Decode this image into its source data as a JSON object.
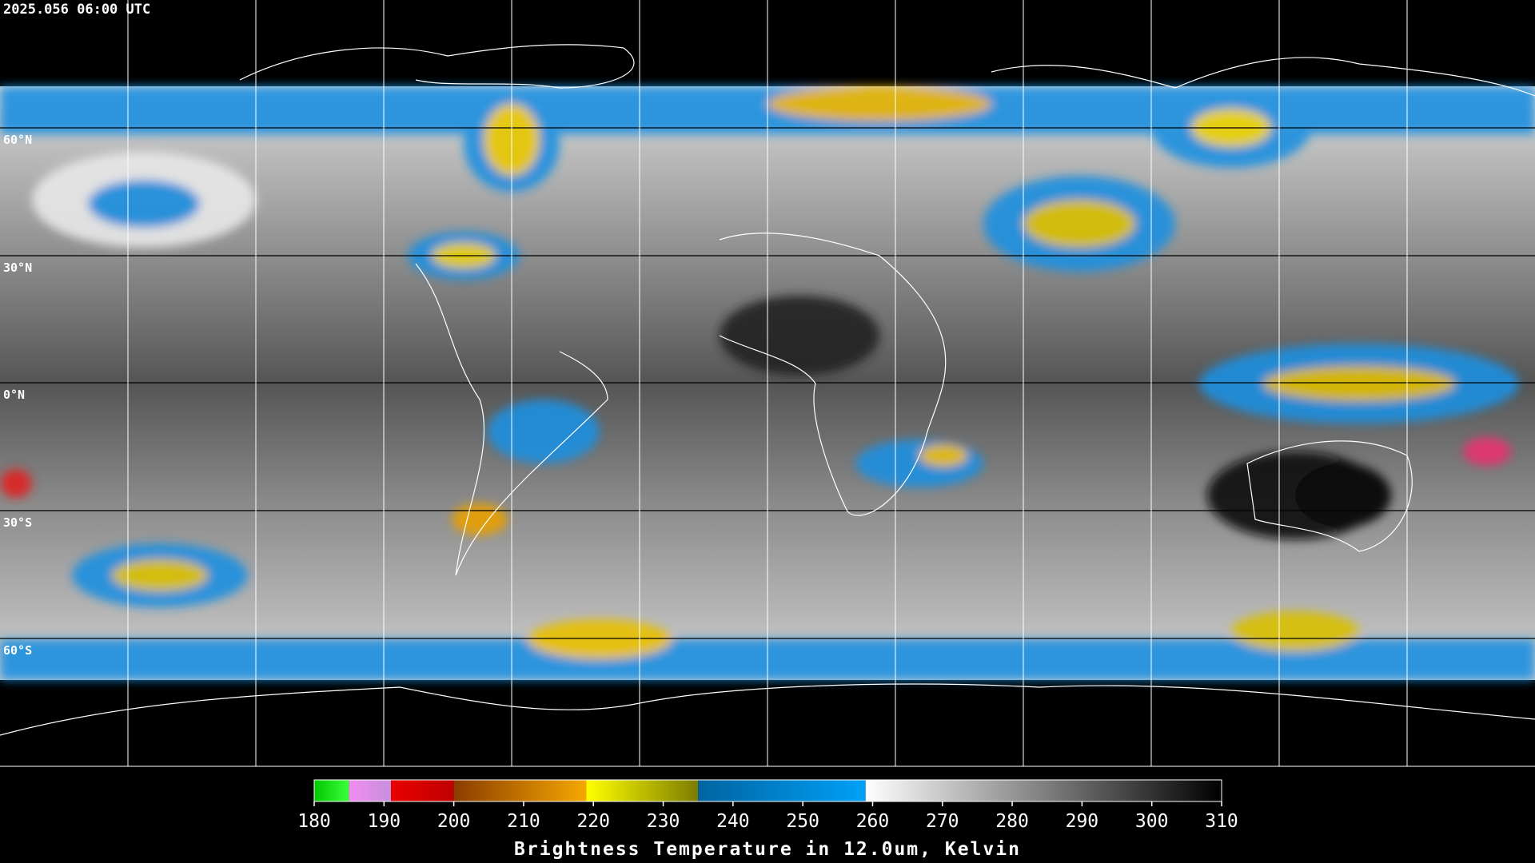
{
  "header": {
    "title": "2025.056 06:00 UTC"
  },
  "map": {
    "lat_labels": [
      "60°N",
      "30°N",
      "0°N",
      "30°S",
      "60°S"
    ]
  },
  "colorbar": {
    "ticks": [
      180,
      190,
      200,
      210,
      220,
      230,
      240,
      250,
      260,
      270,
      280,
      290,
      300,
      310
    ],
    "label": "Brightness Temperature in 12.0um, Kelvin",
    "segments": [
      {
        "from": 180,
        "to": 185,
        "colors": [
          "#00c800",
          "#3cff3c"
        ]
      },
      {
        "from": 185,
        "to": 191,
        "colors": [
          "#f08cf0",
          "#c890dc"
        ]
      },
      {
        "from": 191,
        "to": 200,
        "colors": [
          "#e80000",
          "#c00000"
        ]
      },
      {
        "from": 200,
        "to": 219,
        "colors": [
          "#8a3c00",
          "#f5a800"
        ]
      },
      {
        "from": 219,
        "to": 235,
        "colors": [
          "#ffff00",
          "#7c7c00"
        ]
      },
      {
        "from": 235,
        "to": 259,
        "colors": [
          "#0064a0",
          "#00a0f8"
        ]
      },
      {
        "from": 259,
        "to": 310,
        "colors": [
          "#ffffff",
          "#000000"
        ]
      }
    ]
  }
}
